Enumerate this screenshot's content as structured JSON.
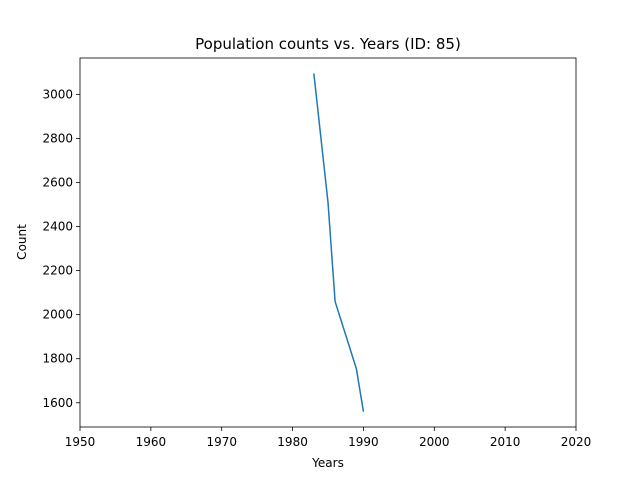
{
  "chart_data": {
    "type": "line",
    "title": "Population counts vs. Years (ID: 85)",
    "xlabel": "Years",
    "ylabel": "Count",
    "xlim": [
      1950,
      2020
    ],
    "ylim": [
      1490,
      3165
    ],
    "xticks": [
      1950,
      1960,
      1970,
      1980,
      1990,
      2000,
      2010,
      2020
    ],
    "yticks": [
      1600,
      1800,
      2000,
      2200,
      2400,
      2600,
      2800,
      3000
    ],
    "grid": false,
    "series": [
      {
        "color": "#1f77b4",
        "x": [
          1983,
          1985,
          1986,
          1989,
          1990
        ],
        "y": [
          3095,
          2510,
          2060,
          1755,
          1560
        ]
      }
    ]
  }
}
